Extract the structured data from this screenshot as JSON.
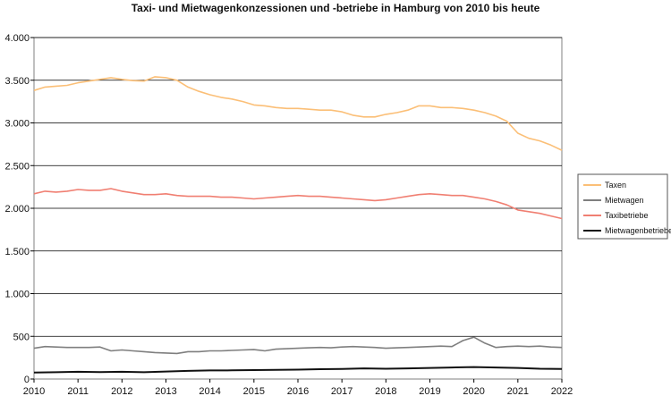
{
  "chart_data": {
    "type": "line",
    "title": "Taxi- und Mietwagenkonzessionen und -betriebe in Hamburg von 2010 bis heute",
    "xlabel": "",
    "ylabel": "",
    "xlim": [
      2010,
      2022
    ],
    "ylim": [
      0,
      4000
    ],
    "grid": true,
    "legend_position": "right",
    "x_ticks": [
      2010,
      2011,
      2012,
      2013,
      2014,
      2015,
      2016,
      2017,
      2018,
      2019,
      2020,
      2021,
      2022
    ],
    "x_tick_labels": [
      "2010",
      "2011",
      "2012",
      "2013",
      "2014",
      "2015",
      "2016",
      "2017",
      "2018",
      "2019",
      "2020",
      "2021",
      "2022"
    ],
    "y_ticks": [
      0,
      500,
      1000,
      1500,
      2000,
      2500,
      3000,
      3500,
      4000
    ],
    "y_tick_labels": [
      "0",
      "500",
      "1.000",
      "1.500",
      "2.000",
      "2.500",
      "3.000",
      "3.500",
      "4.000"
    ],
    "series": [
      {
        "name": "Taxen",
        "color": "#fbbf77",
        "points": [
          [
            2010,
            3380
          ],
          [
            2010.25,
            3420
          ],
          [
            2010.5,
            3430
          ],
          [
            2010.75,
            3440
          ],
          [
            2011,
            3470
          ],
          [
            2011.25,
            3490
          ],
          [
            2011.5,
            3510
          ],
          [
            2011.75,
            3530
          ],
          [
            2012,
            3510
          ],
          [
            2012.25,
            3495
          ],
          [
            2012.5,
            3490
          ],
          [
            2012.75,
            3540
          ],
          [
            2013,
            3530
          ],
          [
            2013.25,
            3500
          ],
          [
            2013.5,
            3420
          ],
          [
            2013.75,
            3370
          ],
          [
            2014,
            3330
          ],
          [
            2014.25,
            3300
          ],
          [
            2014.5,
            3280
          ],
          [
            2014.75,
            3250
          ],
          [
            2015,
            3210
          ],
          [
            2015.25,
            3200
          ],
          [
            2015.5,
            3180
          ],
          [
            2015.75,
            3170
          ],
          [
            2016,
            3170
          ],
          [
            2016.25,
            3160
          ],
          [
            2016.5,
            3150
          ],
          [
            2016.75,
            3150
          ],
          [
            2017,
            3130
          ],
          [
            2017.25,
            3090
          ],
          [
            2017.5,
            3070
          ],
          [
            2017.75,
            3070
          ],
          [
            2018,
            3100
          ],
          [
            2018.25,
            3120
          ],
          [
            2018.5,
            3150
          ],
          [
            2018.75,
            3200
          ],
          [
            2019,
            3200
          ],
          [
            2019.25,
            3180
          ],
          [
            2019.5,
            3180
          ],
          [
            2019.75,
            3170
          ],
          [
            2020,
            3150
          ],
          [
            2020.25,
            3120
          ],
          [
            2020.5,
            3080
          ],
          [
            2020.75,
            3020
          ],
          [
            2021,
            2880
          ],
          [
            2021.25,
            2820
          ],
          [
            2021.5,
            2790
          ],
          [
            2021.75,
            2740
          ],
          [
            2022,
            2680
          ]
        ]
      },
      {
        "name": "Mietwagen",
        "color": "#7f7f7f",
        "points": [
          [
            2010,
            360
          ],
          [
            2010.25,
            380
          ],
          [
            2010.5,
            375
          ],
          [
            2010.75,
            370
          ],
          [
            2011,
            370
          ],
          [
            2011.25,
            370
          ],
          [
            2011.5,
            375
          ],
          [
            2011.75,
            330
          ],
          [
            2012,
            340
          ],
          [
            2012.25,
            330
          ],
          [
            2012.5,
            320
          ],
          [
            2012.75,
            310
          ],
          [
            2013,
            305
          ],
          [
            2013.25,
            300
          ],
          [
            2013.5,
            320
          ],
          [
            2013.75,
            320
          ],
          [
            2014,
            330
          ],
          [
            2014.25,
            330
          ],
          [
            2014.5,
            335
          ],
          [
            2014.75,
            340
          ],
          [
            2015,
            345
          ],
          [
            2015.25,
            330
          ],
          [
            2015.5,
            350
          ],
          [
            2015.75,
            355
          ],
          [
            2016,
            360
          ],
          [
            2016.25,
            365
          ],
          [
            2016.5,
            370
          ],
          [
            2016.75,
            365
          ],
          [
            2017,
            375
          ],
          [
            2017.25,
            380
          ],
          [
            2017.5,
            375
          ],
          [
            2017.75,
            370
          ],
          [
            2018,
            360
          ],
          [
            2018.25,
            365
          ],
          [
            2018.5,
            370
          ],
          [
            2018.75,
            375
          ],
          [
            2019,
            380
          ],
          [
            2019.25,
            385
          ],
          [
            2019.5,
            380
          ],
          [
            2019.75,
            450
          ],
          [
            2020,
            490
          ],
          [
            2020.25,
            420
          ],
          [
            2020.5,
            370
          ],
          [
            2020.75,
            380
          ],
          [
            2021,
            385
          ],
          [
            2021.25,
            380
          ],
          [
            2021.5,
            385
          ],
          [
            2021.75,
            375
          ],
          [
            2022,
            370
          ]
        ]
      },
      {
        "name": "Taxibetriebe",
        "color": "#f07f72",
        "points": [
          [
            2010,
            2170
          ],
          [
            2010.25,
            2200
          ],
          [
            2010.5,
            2190
          ],
          [
            2010.75,
            2200
          ],
          [
            2011,
            2220
          ],
          [
            2011.25,
            2210
          ],
          [
            2011.5,
            2210
          ],
          [
            2011.75,
            2230
          ],
          [
            2012,
            2200
          ],
          [
            2012.25,
            2180
          ],
          [
            2012.5,
            2160
          ],
          [
            2012.75,
            2160
          ],
          [
            2013,
            2170
          ],
          [
            2013.25,
            2150
          ],
          [
            2013.5,
            2140
          ],
          [
            2013.75,
            2140
          ],
          [
            2014,
            2140
          ],
          [
            2014.25,
            2130
          ],
          [
            2014.5,
            2130
          ],
          [
            2014.75,
            2120
          ],
          [
            2015,
            2110
          ],
          [
            2015.25,
            2120
          ],
          [
            2015.5,
            2130
          ],
          [
            2015.75,
            2140
          ],
          [
            2016,
            2150
          ],
          [
            2016.25,
            2140
          ],
          [
            2016.5,
            2140
          ],
          [
            2016.75,
            2130
          ],
          [
            2017,
            2120
          ],
          [
            2017.25,
            2110
          ],
          [
            2017.5,
            2100
          ],
          [
            2017.75,
            2090
          ],
          [
            2018,
            2100
          ],
          [
            2018.25,
            2120
          ],
          [
            2018.5,
            2140
          ],
          [
            2018.75,
            2160
          ],
          [
            2019,
            2170
          ],
          [
            2019.25,
            2160
          ],
          [
            2019.5,
            2150
          ],
          [
            2019.75,
            2150
          ],
          [
            2020,
            2130
          ],
          [
            2020.25,
            2110
          ],
          [
            2020.5,
            2080
          ],
          [
            2020.75,
            2040
          ],
          [
            2021,
            1980
          ],
          [
            2021.25,
            1960
          ],
          [
            2021.5,
            1940
          ],
          [
            2021.75,
            1910
          ],
          [
            2022,
            1880
          ]
        ]
      },
      {
        "name": "Mietwagenbetriebe",
        "color": "#111111",
        "points": [
          [
            2010,
            75
          ],
          [
            2010.5,
            80
          ],
          [
            2011,
            85
          ],
          [
            2011.5,
            82
          ],
          [
            2012,
            85
          ],
          [
            2012.5,
            80
          ],
          [
            2013,
            88
          ],
          [
            2013.5,
            95
          ],
          [
            2014,
            100
          ],
          [
            2014.5,
            102
          ],
          [
            2015,
            105
          ],
          [
            2015.5,
            108
          ],
          [
            2016,
            110
          ],
          [
            2016.5,
            115
          ],
          [
            2017,
            118
          ],
          [
            2017.5,
            125
          ],
          [
            2018,
            120
          ],
          [
            2018.5,
            125
          ],
          [
            2019,
            130
          ],
          [
            2019.5,
            135
          ],
          [
            2020,
            140
          ],
          [
            2020.5,
            135
          ],
          [
            2021,
            130
          ],
          [
            2021.5,
            120
          ],
          [
            2022,
            118
          ]
        ]
      }
    ]
  }
}
